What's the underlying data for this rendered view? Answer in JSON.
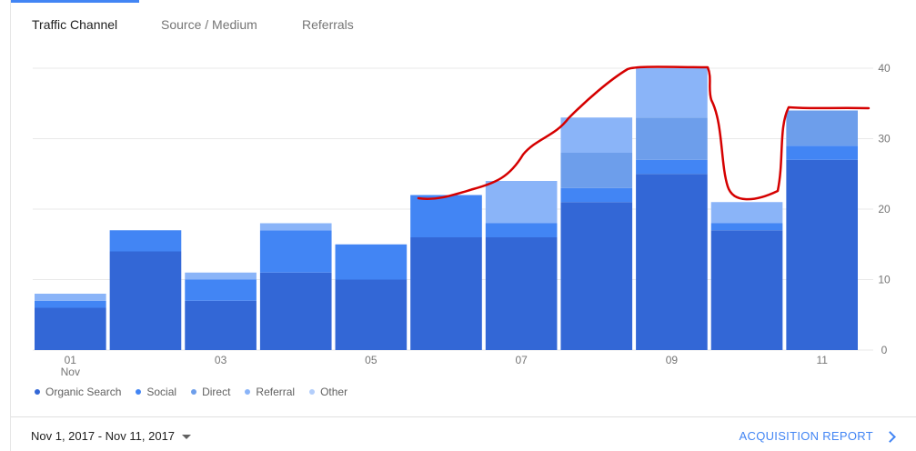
{
  "tabs": [
    {
      "label": "Traffic Channel",
      "active": true
    },
    {
      "label": "Source / Medium",
      "active": false
    },
    {
      "label": "Referrals",
      "active": false
    }
  ],
  "colors": {
    "accent": "#4285f4",
    "organic_search": "#3367d6",
    "social": "#4285f4",
    "direct": "#6d9eeb",
    "referral": "#8ab4f8",
    "other": "#b3cefb",
    "annotation": "#d50000"
  },
  "chart_data": {
    "type": "bar",
    "stacked": true,
    "categories": [
      "01",
      "02",
      "03",
      "04",
      "05",
      "06",
      "07",
      "08",
      "09",
      "10",
      "11"
    ],
    "x_tick_labels": [
      "01",
      "03",
      "05",
      "07",
      "09",
      "11"
    ],
    "x_tick_sublabel": "Nov",
    "series": [
      {
        "name": "Organic Search",
        "color": "#3367d6",
        "values": [
          6,
          14,
          7,
          11,
          10,
          16,
          16,
          21,
          25,
          17,
          27
        ]
      },
      {
        "name": "Social",
        "color": "#4285f4",
        "values": [
          1,
          3,
          3,
          6,
          5,
          6,
          2,
          2,
          2,
          1,
          2
        ]
      },
      {
        "name": "Direct",
        "color": "#6d9eeb",
        "values": [
          0,
          0,
          0,
          0,
          0,
          0,
          0,
          5,
          6,
          0,
          5
        ]
      },
      {
        "name": "Referral",
        "color": "#8ab4f8",
        "values": [
          1,
          0,
          1,
          1,
          0,
          0,
          6,
          5,
          7,
          3,
          0
        ]
      },
      {
        "name": "Other",
        "color": "#b3cefb",
        "values": [
          0,
          0,
          0,
          0,
          0,
          0,
          0,
          0,
          0,
          0,
          0
        ]
      }
    ],
    "ylim": [
      0,
      40
    ],
    "yticks": [
      "0",
      "10",
      "20",
      "30",
      "40"
    ],
    "grid": true,
    "y_axis_side": "right",
    "legend_placement": "bottom-left"
  },
  "footer": {
    "date_range": "Nov 1, 2017 - Nov 11, 2017",
    "report_link": "ACQUISITION REPORT"
  }
}
